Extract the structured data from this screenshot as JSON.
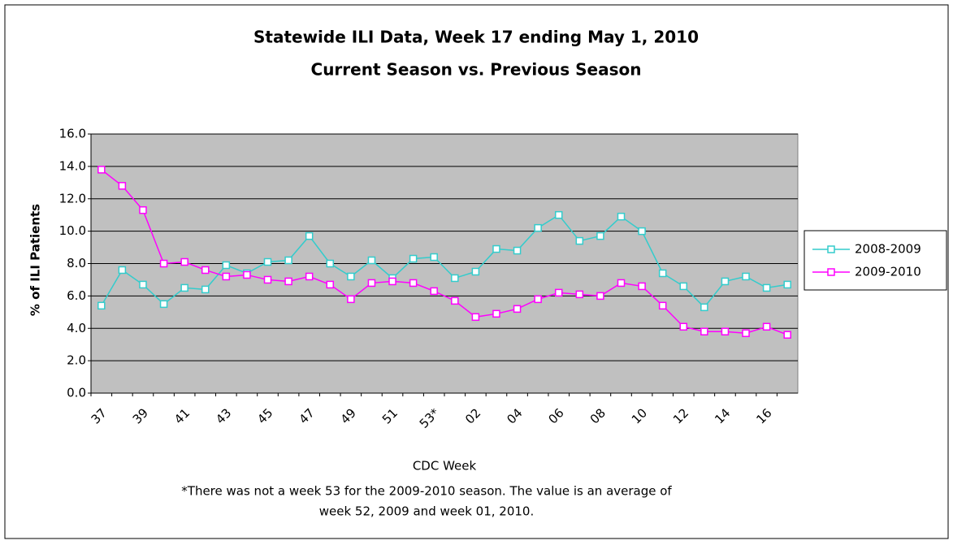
{
  "chart_data": {
    "type": "line",
    "title": [
      "Statewide ILI Data, Week 17 ending May 1, 2010",
      "Current Season vs. Previous Season"
    ],
    "xlabel": "CDC Week",
    "ylabel": "% of ILI Patients",
    "notes": [
      "*There was not a week 53 for the 2009-2010 season. The value is an average of",
      "week 52, 2009 and week 01, 2010."
    ],
    "categories": [
      "37",
      null,
      "39",
      null,
      "41",
      null,
      "43",
      null,
      "45",
      null,
      "47",
      null,
      "49",
      null,
      "51",
      null,
      "53*",
      null,
      "02",
      null,
      "04",
      null,
      "06",
      null,
      "08",
      null,
      "10",
      null,
      "12",
      null,
      "14",
      null,
      "16",
      null
    ],
    "series": [
      {
        "name": "2008-2009",
        "color": "#33CCCC",
        "values": [
          5.4,
          7.6,
          6.7,
          5.5,
          6.5,
          6.4,
          7.9,
          7.4,
          8.1,
          8.2,
          9.7,
          8.0,
          7.2,
          8.2,
          7.1,
          8.3,
          8.4,
          7.1,
          7.5,
          8.9,
          8.8,
          10.2,
          11.0,
          9.4,
          9.7,
          10.9,
          10.0,
          7.4,
          6.6,
          5.3,
          6.9,
          7.2,
          6.5,
          6.7
        ]
      },
      {
        "name": "2009-2010",
        "color": "#FF00FF",
        "values": [
          13.8,
          12.8,
          11.3,
          8.0,
          8.1,
          7.6,
          7.2,
          7.3,
          7.0,
          6.9,
          7.2,
          6.7,
          5.8,
          6.8,
          6.9,
          6.8,
          6.3,
          5.7,
          4.7,
          4.9,
          5.2,
          5.8,
          6.2,
          6.1,
          6.0,
          6.8,
          6.6,
          5.4,
          4.1,
          3.8,
          3.8,
          3.7,
          4.1,
          3.6
        ]
      }
    ],
    "ylim": [
      0,
      16
    ],
    "yticks": [
      {
        "value": 0,
        "label": "0.0"
      },
      {
        "value": 2,
        "label": "2.0"
      },
      {
        "value": 4,
        "label": "4.0"
      },
      {
        "value": 6,
        "label": "6.0"
      },
      {
        "value": 8,
        "label": "8.0"
      },
      {
        "value": 10,
        "label": "10.0"
      },
      {
        "value": 12,
        "label": "12.0"
      },
      {
        "value": 14,
        "label": "14.0"
      },
      {
        "value": 16,
        "label": "16.0"
      }
    ],
    "grid": true,
    "legend": "right"
  }
}
